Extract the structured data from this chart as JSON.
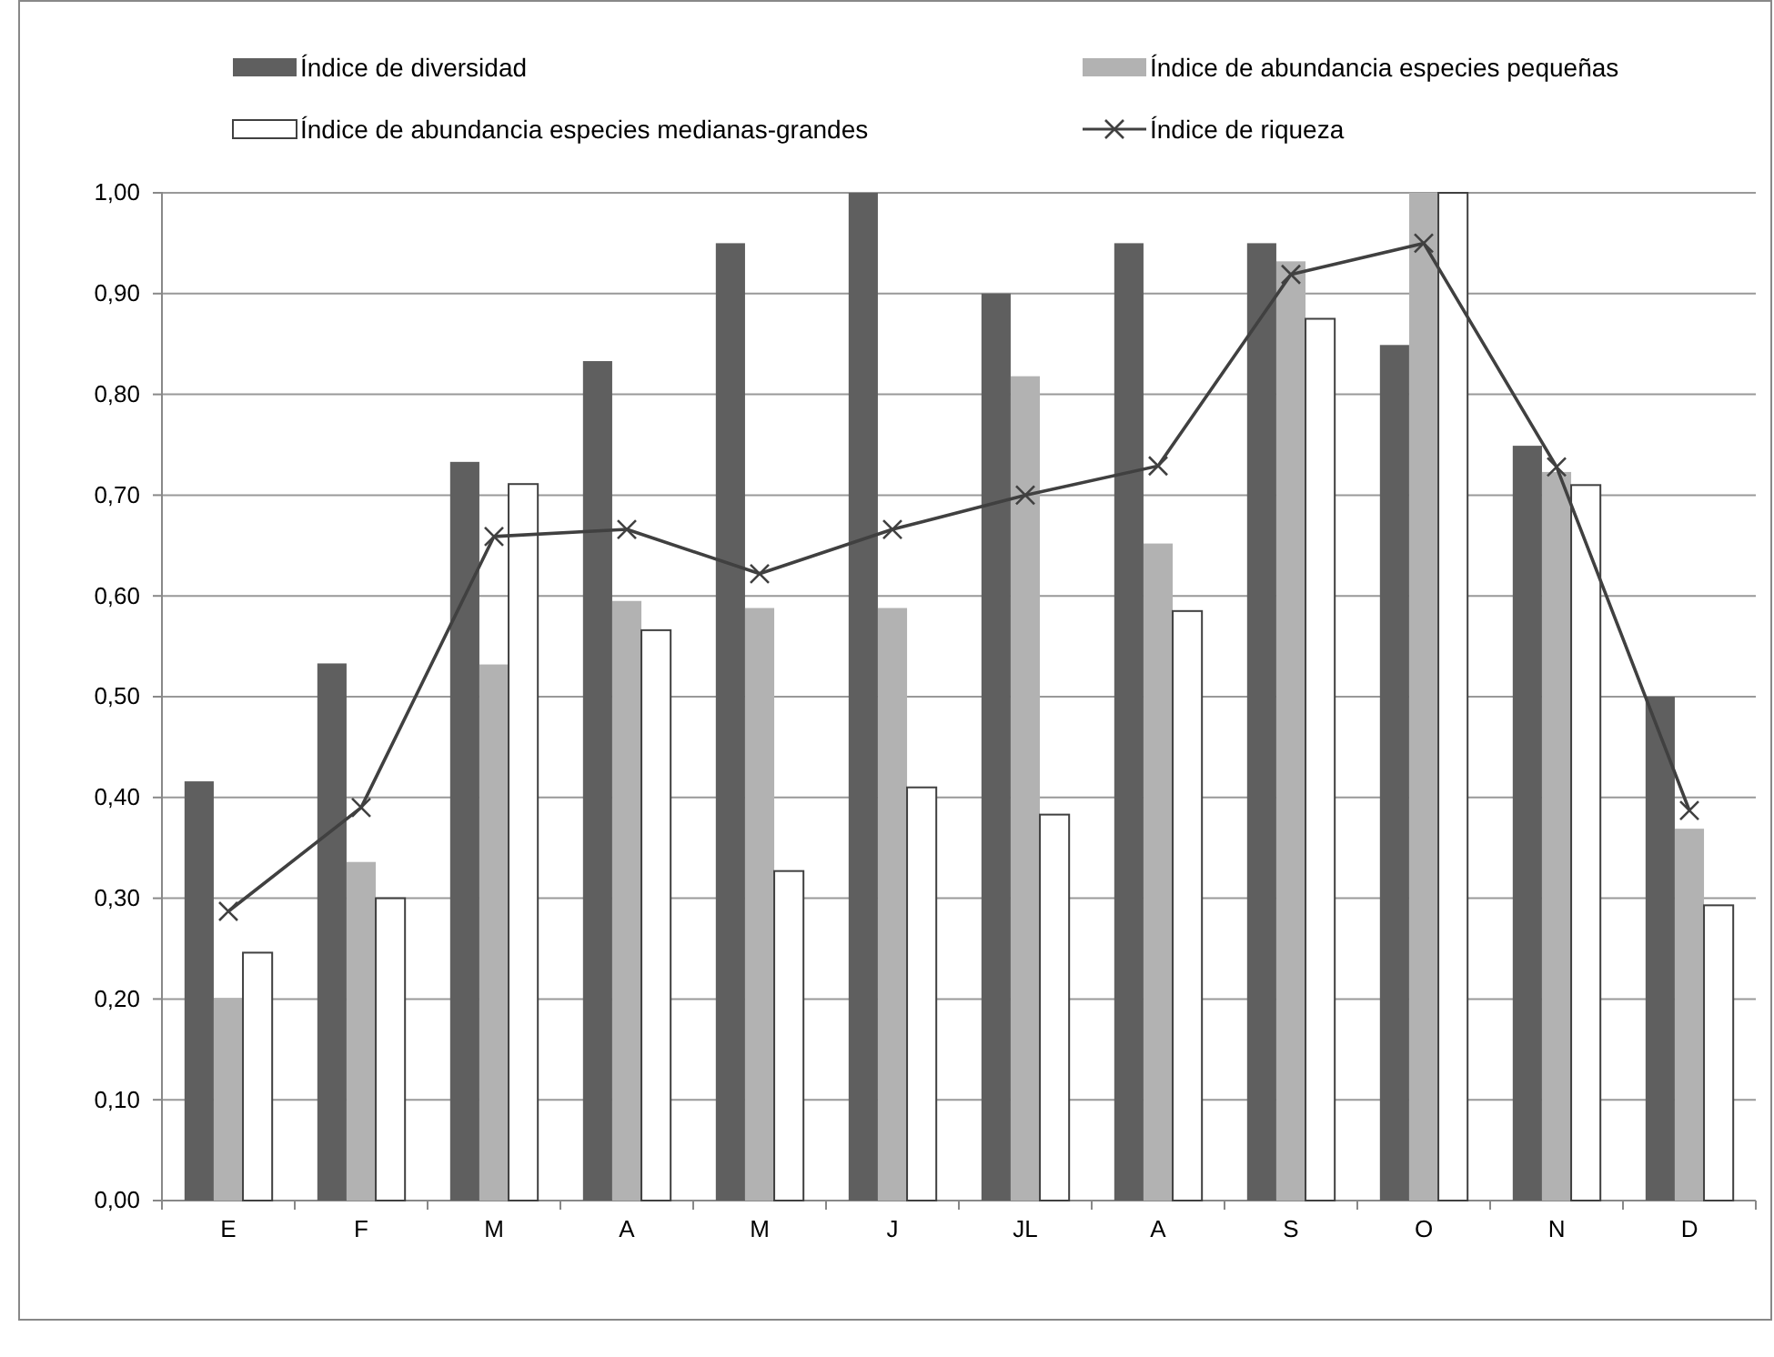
{
  "chart_data": {
    "type": "bar",
    "categories": [
      "E",
      "F",
      "M",
      "A",
      "M",
      "J",
      "JL",
      "A",
      "S",
      "O",
      "N",
      "D"
    ],
    "series": [
      {
        "name": "Índice de  diversidad",
        "color": "#5f5f5f",
        "values": [
          0.416,
          0.533,
          0.733,
          0.833,
          0.95,
          1.0,
          0.9,
          0.95,
          0.95,
          0.849,
          0.749,
          0.5
        ]
      },
      {
        "name": "Índice de  abundancia especies pequeñas",
        "color": "#b2b2b2",
        "values": [
          0.201,
          0.336,
          0.532,
          0.595,
          0.588,
          0.588,
          0.818,
          0.652,
          0.932,
          1.0,
          0.723,
          0.369
        ]
      },
      {
        "name": "Índice de  abundancia especies medianas-grandes",
        "color": "#ffffff",
        "values": [
          0.246,
          0.3,
          0.711,
          0.566,
          0.327,
          0.41,
          0.383,
          0.585,
          0.875,
          1.0,
          0.71,
          0.293
        ]
      },
      {
        "name": "Índice de  riqueza",
        "color": "#404040",
        "type": "line",
        "marker": "cross",
        "values": [
          0.287,
          0.39,
          0.659,
          0.666,
          0.622,
          0.666,
          0.7,
          0.729,
          0.919,
          0.95,
          0.728,
          0.387
        ]
      }
    ],
    "ylim": [
      0,
      1
    ],
    "yticks": [
      {
        "value": 0,
        "label": "0,00"
      },
      {
        "value": 0.1,
        "label": "0,10"
      },
      {
        "value": 0.2,
        "label": "0,20"
      },
      {
        "value": 0.3,
        "label": "0,30"
      },
      {
        "value": 0.4,
        "label": "0,40"
      },
      {
        "value": 0.5,
        "label": "0,50"
      },
      {
        "value": 0.6,
        "label": "0,60"
      },
      {
        "value": 0.7,
        "label": "0,70"
      },
      {
        "value": 0.8,
        "label": "0,80"
      },
      {
        "value": 0.9,
        "label": "0,90"
      },
      {
        "value": 1,
        "label": "1,00"
      }
    ],
    "grid": "y",
    "legend": "top"
  }
}
